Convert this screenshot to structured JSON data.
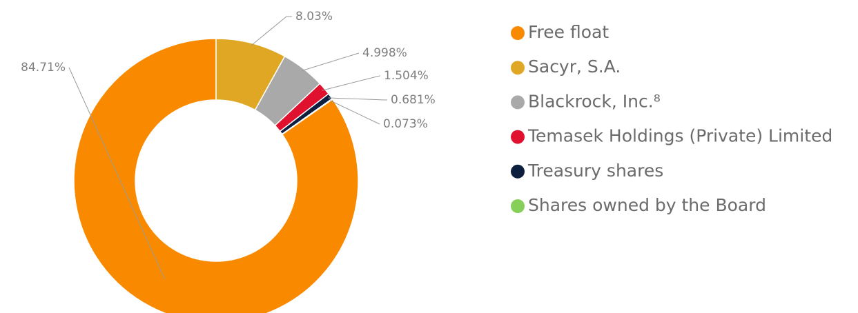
{
  "chart_data": {
    "type": "donut",
    "categories": [
      "Free float",
      "Sacyr, S.A.",
      "Blackrock, Inc.⁸",
      "Temasek Holdings (Private) Limited",
      "Treasury shares",
      "Shares owned by the Board"
    ],
    "values": [
      84.71,
      8.03,
      4.998,
      1.504,
      0.681,
      0.073
    ],
    "value_labels": [
      "84.71%",
      "8.03%",
      "4.998%",
      "1.504%",
      "0.681%",
      "0.073%"
    ],
    "colors": [
      "#f98a00",
      "#dfa723",
      "#a9a9a9",
      "#e0102f",
      "#0d1f3f",
      "#86cf5a"
    ],
    "legend": "right"
  }
}
